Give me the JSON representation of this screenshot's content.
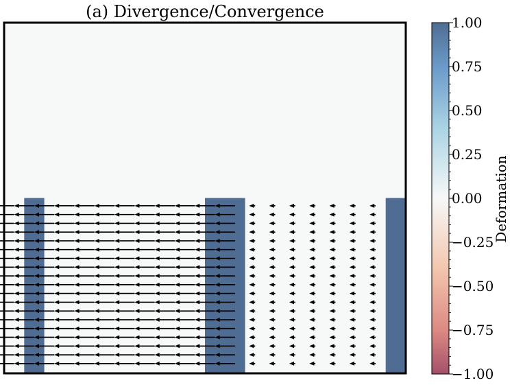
{
  "chart_data": {
    "type": "quiver-heatmap",
    "title": "(a) Divergence/Convergence",
    "background_value": 0.0,
    "deformation_regions": [
      {
        "x_range": [
          1,
          2
        ],
        "y_range": [
          0,
          9
        ],
        "value": 1.0
      },
      {
        "x_range": [
          10,
          12
        ],
        "y_range": [
          0,
          9
        ],
        "value": 1.0
      },
      {
        "x_range": [
          19,
          20
        ],
        "y_range": [
          0,
          9
        ],
        "value": 1.0
      }
    ],
    "x_range": [
      0,
      20
    ],
    "y_range": [
      0,
      18
    ],
    "arrow_rows_y": [
      0.5,
      0.95,
      1.4,
      1.85,
      2.3,
      2.75,
      3.2,
      3.65,
      4.1,
      4.55,
      5.0,
      5.45,
      5.9,
      6.35,
      6.8,
      7.25,
      7.7,
      8.15,
      8.6
    ],
    "arrow_columns_x": [
      0,
      1,
      2,
      3,
      4,
      5,
      6,
      7,
      8,
      9,
      10,
      11,
      12,
      13,
      14,
      15,
      16,
      17,
      18
    ],
    "arrow_u": [
      -1.0,
      -1.0,
      -1.0,
      -1.0,
      -1.0,
      -1.0,
      -1.0,
      -1.0,
      -1.0,
      -1.0,
      -1.0,
      -1.0,
      -0.3,
      -0.3,
      -0.3,
      -0.3,
      -0.3,
      -0.3,
      -0.3
    ],
    "arrow_v": 0,
    "colorbar": {
      "label": "Deformation",
      "range": [
        -1.0,
        1.0
      ],
      "ticks": [
        "1.00",
        "0.75",
        "0.50",
        "0.25",
        "0.00",
        "−0.25",
        "−0.50",
        "−0.75",
        "−1.00"
      ],
      "tick_values": [
        1.0,
        0.75,
        0.5,
        0.25,
        0.0,
        -0.25,
        -0.5,
        -0.75,
        -1.0
      ],
      "colormap": "RdBu",
      "colors": {
        "max": "#4f6d93",
        "upper_mid": "#6a9ac9",
        "upper_light": "#aad4e5",
        "center": "#f7f8f8",
        "lower_light": "#f3c6ae",
        "lower_mid": "#dc8a82",
        "min": "#a4506b"
      }
    }
  }
}
